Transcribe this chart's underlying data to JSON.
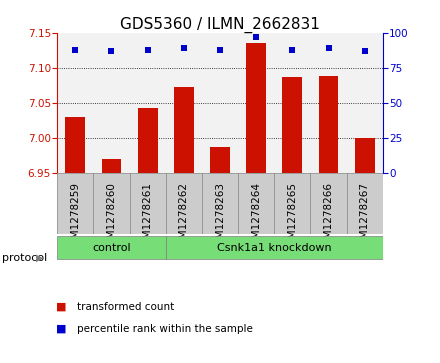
{
  "title": "GDS5360 / ILMN_2662831",
  "samples": [
    "GSM1278259",
    "GSM1278260",
    "GSM1278261",
    "GSM1278262",
    "GSM1278263",
    "GSM1278264",
    "GSM1278265",
    "GSM1278266",
    "GSM1278267"
  ],
  "bar_values": [
    7.03,
    6.97,
    7.043,
    7.073,
    6.988,
    7.135,
    7.087,
    7.088,
    7.001
  ],
  "percentile_values": [
    88,
    87,
    88,
    89,
    88,
    97,
    88,
    89,
    87
  ],
  "ylim_left": [
    6.95,
    7.15
  ],
  "ylim_right": [
    0,
    100
  ],
  "yticks_left": [
    6.95,
    7.0,
    7.05,
    7.1,
    7.15
  ],
  "yticks_right": [
    0,
    25,
    50,
    75,
    100
  ],
  "bar_color": "#cc1100",
  "dot_color": "#0000cc",
  "bg_plot": "#f2f2f2",
  "bg_sample": "#cccccc",
  "bg_green": "#77dd77",
  "bg_white": "#ffffff",
  "control_label": "control",
  "knockdown_label": "Csnk1a1 knockdown",
  "control_indices": [
    0,
    1,
    2
  ],
  "knockdown_indices": [
    3,
    4,
    5,
    6,
    7,
    8
  ],
  "protocol_label": "protocol",
  "legend_bar_label": "transformed count",
  "legend_dot_label": "percentile rank within the sample",
  "title_fontsize": 11,
  "tick_fontsize": 7.5,
  "label_fontsize": 8,
  "bar_width": 0.55
}
